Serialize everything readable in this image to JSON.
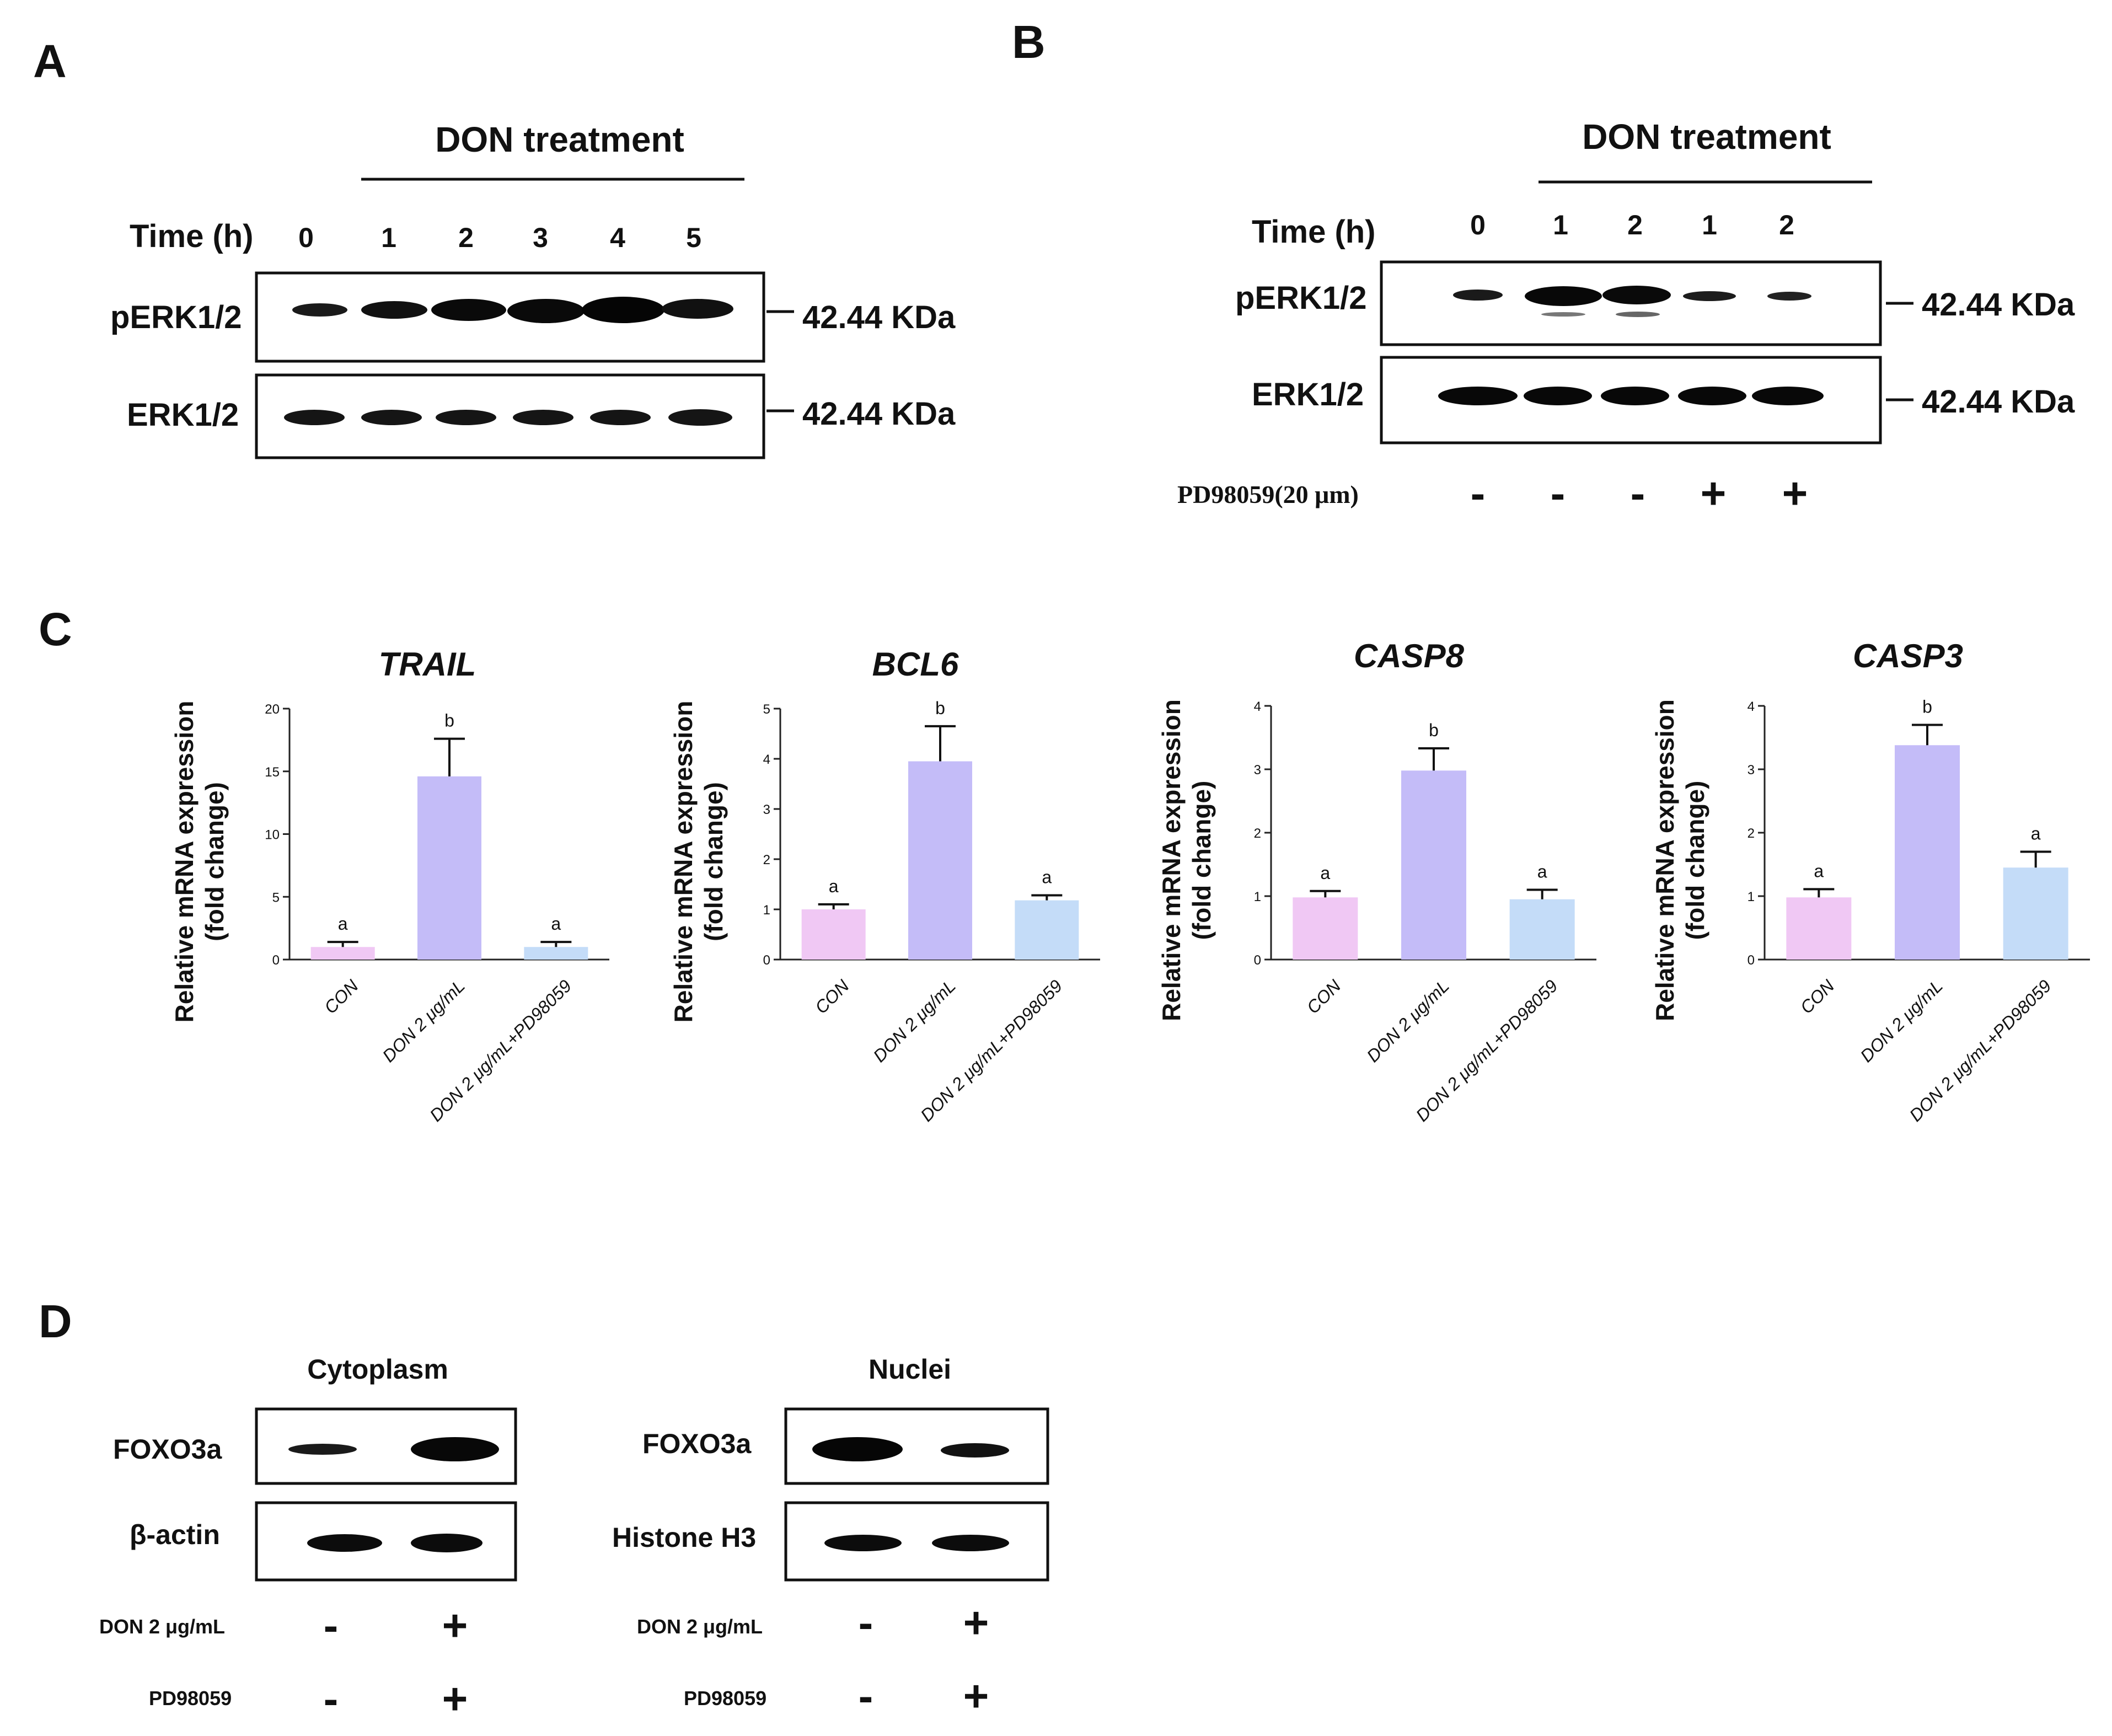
{
  "panelA": {
    "letter": "A",
    "header": "DON treatment",
    "time_label": "Time (h)",
    "time_points": [
      "0",
      "1",
      "2",
      "3",
      "4",
      "5"
    ],
    "rows": [
      {
        "label": "pERK1/2",
        "mw": "42.44 KDa"
      },
      {
        "label": "ERK1/2",
        "mw": "42.44 KDa"
      }
    ]
  },
  "panelB": {
    "letter": "B",
    "header": "DON treatment",
    "time_label": "Time (h)",
    "time_points": [
      "0",
      "1",
      "2",
      "1",
      "2"
    ],
    "rows": [
      {
        "label": "pERK1/2",
        "mw": "42.44 KDa"
      },
      {
        "label": "ERK1/2",
        "mw": "42.44 KDa"
      }
    ],
    "inhibitor_label": "PD98059(20 μm)",
    "inhibitor_signs": [
      "-",
      "-",
      "-",
      "+",
      "+"
    ]
  },
  "panelC": {
    "letter": "C",
    "categories": [
      "CON",
      "DON 2 μg/mL",
      "DON 2 μg/mL+PD98059"
    ],
    "ylabel_line1": "Relative mRNA expression",
    "ylabel_line2": "(fold change)"
  },
  "chart_data": [
    {
      "type": "bar",
      "title": "TRAIL",
      "categories": [
        "CON",
        "DON 2 μg/mL",
        "DON 2 μg/mL+PD98059"
      ],
      "values": [
        1.0,
        14.6,
        1.0
      ],
      "errors": [
        0.4,
        3.0,
        0.4
      ],
      "significance": [
        "a",
        "b",
        "a"
      ],
      "ylim": [
        0,
        20
      ],
      "yticks": [
        "0",
        "5",
        "10",
        "15",
        "20"
      ],
      "ylabel": "Relative mRNA expression (fold change)",
      "colors": [
        "#f0c8f4",
        "#c4bcf8",
        "#c4dcf8"
      ]
    },
    {
      "type": "bar",
      "title": "BCL6",
      "categories": [
        "CON",
        "DON 2 μg/mL",
        "DON 2 μg/mL+PD98059"
      ],
      "values": [
        1.0,
        3.95,
        1.18
      ],
      "errors": [
        0.1,
        0.7,
        0.1
      ],
      "significance": [
        "a",
        "b",
        "a"
      ],
      "ylim": [
        0,
        5
      ],
      "yticks": [
        "0",
        "1",
        "2",
        "3",
        "4",
        "5"
      ],
      "ylabel": "Relative mRNA expression (fold change)",
      "colors": [
        "#f0c8f4",
        "#c4bcf8",
        "#c4dcf8"
      ]
    },
    {
      "type": "bar",
      "title": "CASP8",
      "categories": [
        "CON",
        "DON 2 μg/mL",
        "DON 2 μg/mL+PD98059"
      ],
      "values": [
        0.98,
        2.98,
        0.95
      ],
      "errors": [
        0.1,
        0.35,
        0.15
      ],
      "significance": [
        "a",
        "b",
        "a"
      ],
      "ylim": [
        0,
        4
      ],
      "yticks": [
        "0",
        "1",
        "2",
        "3",
        "4"
      ],
      "ylabel": "Relative mRNA expression (fold change)",
      "colors": [
        "#f0c8f4",
        "#c4bcf8",
        "#c4dcf8"
      ]
    },
    {
      "type": "bar",
      "title": "CASP3",
      "categories": [
        "CON",
        "DON 2 μg/mL",
        "DON 2 μg/mL+PD98059"
      ],
      "values": [
        0.98,
        3.38,
        1.45
      ],
      "errors": [
        0.13,
        0.32,
        0.25
      ],
      "significance": [
        "a",
        "b",
        "a"
      ],
      "ylim": [
        0,
        4
      ],
      "yticks": [
        "0",
        "1",
        "2",
        "3",
        "4"
      ],
      "ylabel": "Relative mRNA expression (fold change)",
      "colors": [
        "#f0c8f4",
        "#c4bcf8",
        "#c4dcf8"
      ]
    }
  ],
  "panelD": {
    "letter": "D",
    "left": {
      "title": "Cytoplasm",
      "rows": [
        "FOXO3a",
        "β-actin"
      ],
      "don_label": "DON 2 μg/mL",
      "pd_label": "PD98059",
      "don_signs": [
        "-",
        "+"
      ],
      "pd_signs": [
        "-",
        "+"
      ]
    },
    "right": {
      "title": "Nuclei",
      "rows": [
        "FOXO3a",
        "Histone H3"
      ],
      "don_label": "DON 2 μg/mL",
      "pd_label": "PD98059",
      "don_signs": [
        "-",
        "+"
      ],
      "pd_signs": [
        "-",
        "+"
      ]
    }
  }
}
